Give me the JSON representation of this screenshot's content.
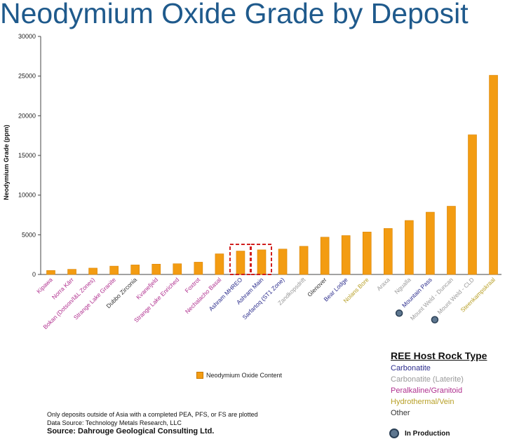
{
  "title": "Neodymium Oxide Grade by Deposit",
  "chart_data": {
    "type": "bar",
    "title": "Neodymium Oxide Grade by Deposit",
    "ylabel": "Neodymium Grade (ppm)",
    "xlabel": "",
    "ylim": [
      0,
      30000
    ],
    "yticks": [
      0,
      5000,
      10000,
      15000,
      20000,
      25000,
      30000
    ],
    "grid": false,
    "legend_placement": "bottom",
    "bar_color": "#f39c12",
    "series": [
      {
        "name": "Neodymium Oxide Content",
        "values": [
          500,
          650,
          800,
          1050,
          1200,
          1300,
          1350,
          1550,
          2600,
          2950,
          3100,
          3200,
          3550,
          4700,
          4900,
          5350,
          5800,
          6800,
          7850,
          8600,
          17600,
          25100
        ]
      }
    ],
    "categories": [
      "Kipawa",
      "Norra Kärr",
      "Bokan (Dotson/I&L Zones)",
      "Strange Lake Granite",
      "Dubbo Zirconia",
      "Kvanefjeld",
      "Strange Lake Enriched",
      "Foxtrot",
      "Nechalacho Basal",
      "Ashram MHREO",
      "Ashram Main",
      "Sarfartoq (ST1 Zone)",
      "Zandkopsdrift",
      "Glenover",
      "Bear Lodge",
      "Nolans Bore",
      "Araxa",
      "Ngualla",
      "Mountain Pass",
      "Mount Weld - Duncan",
      "Mount Weld - CLD",
      "Steenkampskraal"
    ],
    "category_colors": [
      "#b0308f",
      "#b0308f",
      "#b0308f",
      "#b0308f",
      "#333333",
      "#b0308f",
      "#b0308f",
      "#b0308f",
      "#b0308f",
      "#2b2c8c",
      "#2b2c8c",
      "#2b2c8c",
      "#999999",
      "#333333",
      "#2b2c8c",
      "#b8a028",
      "#999999",
      "#999999",
      "#2b2c8c",
      "#999999",
      "#999999",
      "#b8a028"
    ],
    "in_production": [
      "Mountain Pass",
      "Mount Weld - CLD"
    ],
    "highlighted": [
      "Ashram MHREO",
      "Ashram Main"
    ]
  },
  "legend_label": "Neodymium Oxide Content",
  "notes": {
    "line1": "Only deposits outside of Asia with a completed PEA, PFS, or FS are plotted",
    "line2": "Data Source: Technology Metals Research, LLC",
    "source": "Source: Dahrouge Geological Consulting Ltd."
  },
  "host_rock": {
    "title": "REE Host Rock Type",
    "items": [
      {
        "label": "Carbonatite",
        "color": "#2b2c8c"
      },
      {
        "label": "Carbonatite (Laterite)",
        "color": "#999999"
      },
      {
        "label": "Peralkaline/Granitoid",
        "color": "#b0308f"
      },
      {
        "label": "Hydrothermal/Vein",
        "color": "#b8a028"
      },
      {
        "label": "Other",
        "color": "#333333"
      }
    ],
    "in_production": "In Production"
  }
}
